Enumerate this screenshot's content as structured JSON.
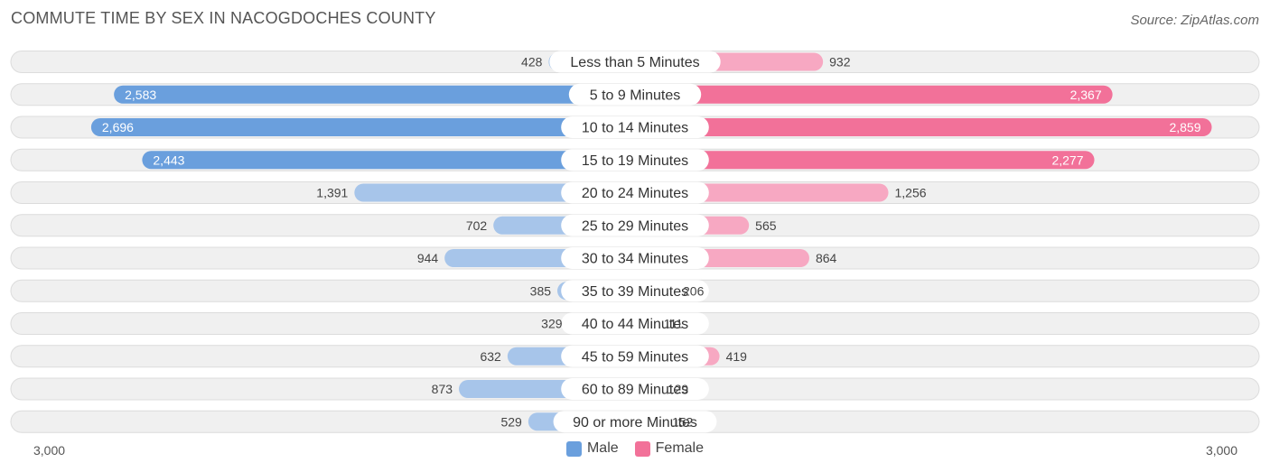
{
  "title": "COMMUTE TIME BY SEX IN NACOGDOCHES COUNTY",
  "source": "Source: ZipAtlas.com",
  "colors": {
    "male_strong": "#6a9fdd",
    "male_light": "#a7c5ea",
    "female_strong": "#f27199",
    "female_light": "#f7a8c2",
    "row_bg": "#f0f0f0",
    "row_border": "#dcdcdc"
  },
  "legend": [
    {
      "label": "Male",
      "color": "#6a9fdd"
    },
    {
      "label": "Female",
      "color": "#f27199"
    }
  ],
  "axis": {
    "left_label": "3,000",
    "right_label": "3,000"
  },
  "chart_data": {
    "type": "bar",
    "orientation": "horizontal-diverging",
    "title": "COMMUTE TIME BY SEX IN NACOGDOCHES COUNTY",
    "xlim": [
      -3000,
      3000
    ],
    "categories": [
      "Less than 5 Minutes",
      "5 to 9 Minutes",
      "10 to 14 Minutes",
      "15 to 19 Minutes",
      "20 to 24 Minutes",
      "25 to 29 Minutes",
      "30 to 34 Minutes",
      "35 to 39 Minutes",
      "40 to 44 Minutes",
      "45 to 59 Minutes",
      "60 to 89 Minutes",
      "90 or more Minutes"
    ],
    "series": [
      {
        "name": "Male",
        "values": [
          428,
          2583,
          2696,
          2443,
          1391,
          702,
          944,
          385,
          329,
          632,
          873,
          529
        ],
        "labels": [
          "428",
          "2,583",
          "2,696",
          "2,443",
          "1,391",
          "702",
          "944",
          "385",
          "329",
          "632",
          "873",
          "529"
        ]
      },
      {
        "name": "Female",
        "values": [
          932,
          2367,
          2859,
          2277,
          1256,
          565,
          864,
          206,
          111,
          419,
          129,
          152
        ],
        "labels": [
          "932",
          "2,367",
          "2,859",
          "2,277",
          "1,256",
          "565",
          "864",
          "206",
          "111",
          "419",
          "129",
          "152"
        ]
      }
    ],
    "legend_position": "bottom-center"
  }
}
